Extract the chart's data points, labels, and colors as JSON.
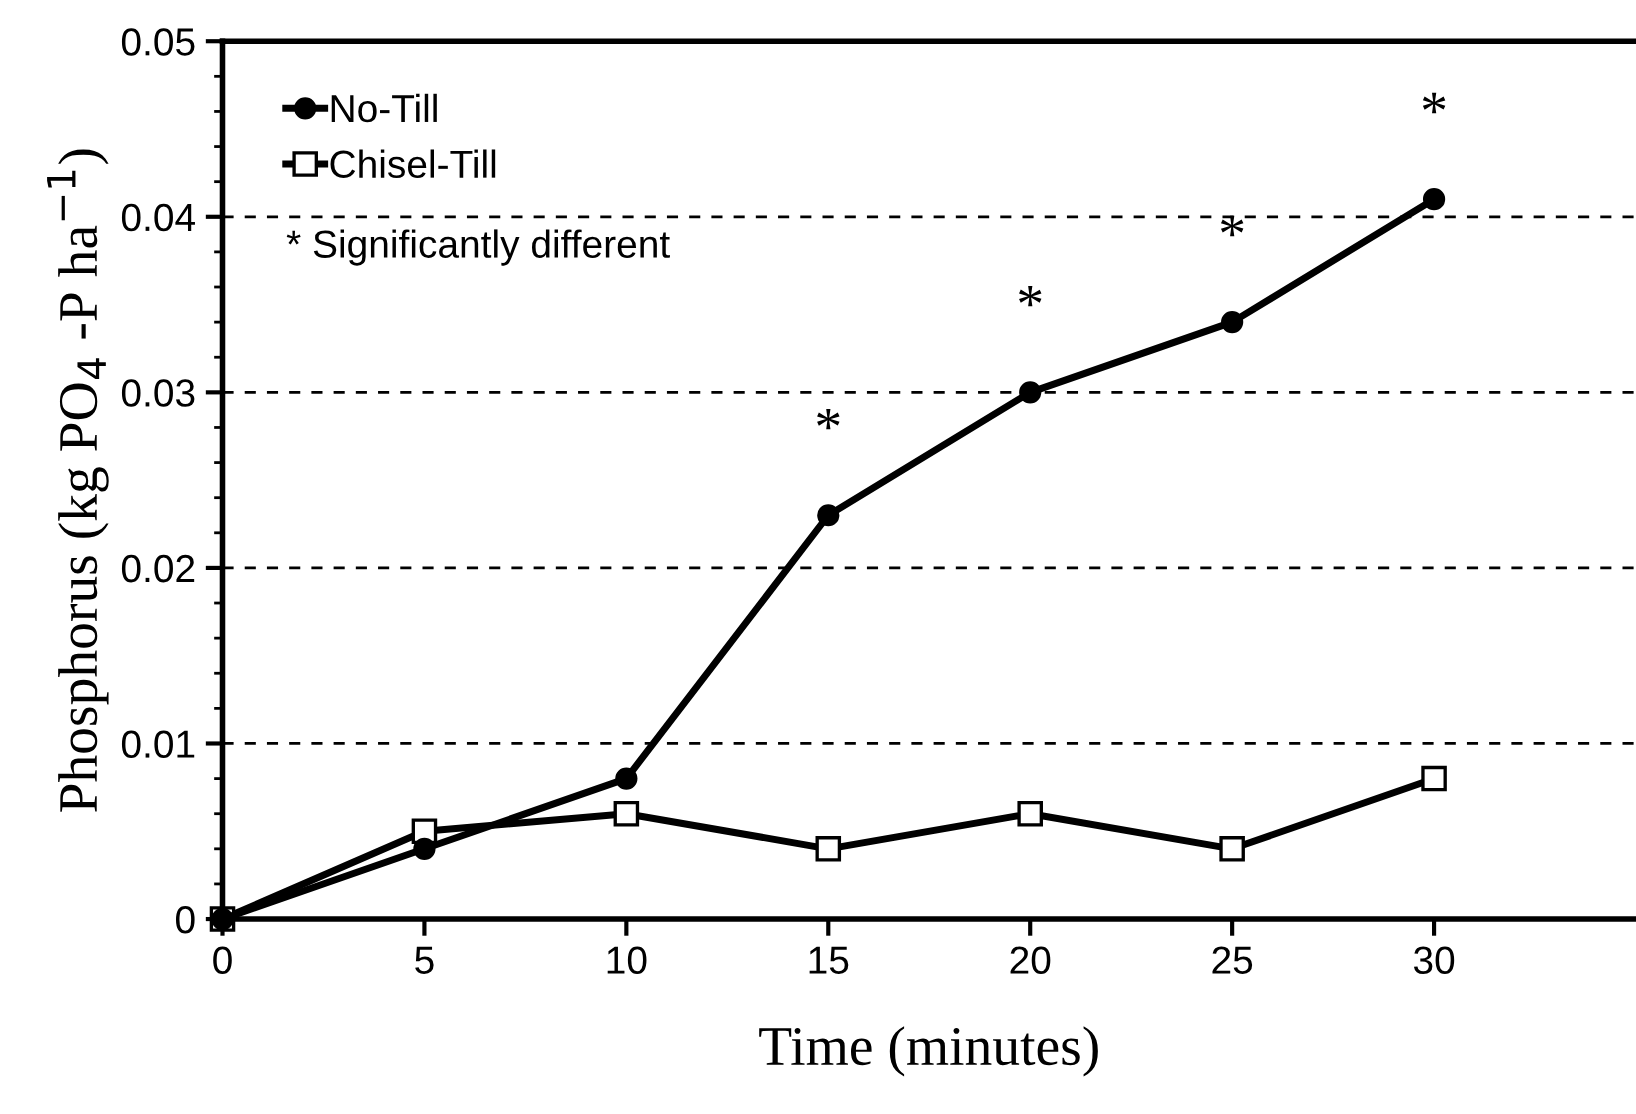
{
  "chart_data": {
    "type": "line",
    "xlabel": "Time (minutes)",
    "ylabel": "Phosphorus (kg PO$_{4}$ -P ha$^{−1}$)",
    "x": [
      0,
      5,
      10,
      15,
      20,
      25,
      30
    ],
    "series": [
      {
        "name": "No-Till",
        "color": "#000000",
        "marker": "circle",
        "values": [
          0,
          0.004,
          0.008,
          0.023,
          0.03,
          0.034,
          0.041
        ]
      },
      {
        "name": "Chisel-Till",
        "color": "#000000",
        "marker": "square",
        "values": [
          0,
          0.005,
          0.006,
          0.004,
          0.006,
          0.004,
          0.008
        ]
      }
    ],
    "xlim": [
      0,
      35
    ],
    "xticks": [
      0,
      5,
      10,
      15,
      20,
      25,
      30
    ],
    "ylim": [
      0,
      0.05
    ],
    "yticks": [
      {
        "value": 0,
        "label": "0"
      },
      0.01,
      0.02,
      0.03,
      0.04,
      0.05
    ],
    "grid": "y",
    "legend": "top left",
    "line_style": "solid",
    "annotations": [
      "* Significantly different",
      "*",
      "*",
      "*",
      "*"
    ]
  }
}
